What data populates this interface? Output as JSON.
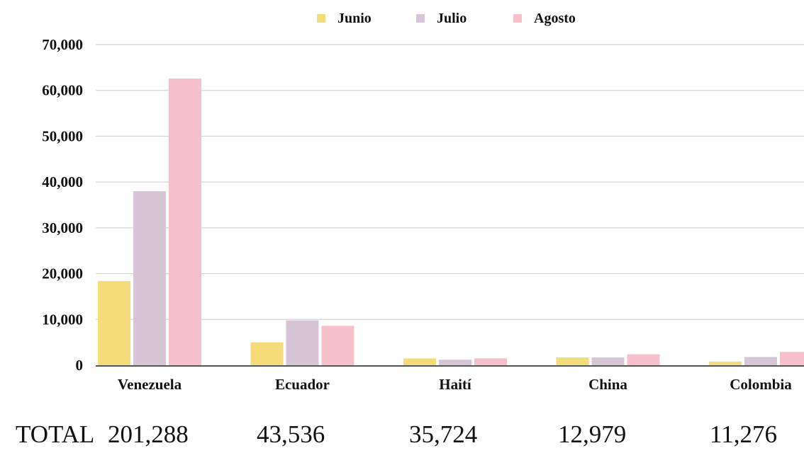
{
  "chart_data": {
    "type": "bar",
    "categories": [
      "Venezuela",
      "Ecuador",
      "Haiti",
      "China",
      "Colombia"
    ],
    "category_labels": [
      "Venezuela",
      "Ecuador",
      "Haití",
      "China",
      "Colombia"
    ],
    "series": [
      {
        "name": "Junio",
        "color": "#f3dc79",
        "values": [
          18400,
          5000,
          1500,
          1700,
          800
        ]
      },
      {
        "name": "Julio",
        "color": "#d5c5d6",
        "values": [
          38000,
          9800,
          1200,
          1700,
          1800
        ]
      },
      {
        "name": "Agosto",
        "color": "#f5c0c9",
        "values": [
          62600,
          8600,
          1500,
          2400,
          2900
        ]
      }
    ],
    "ylim": [
      0,
      70000
    ],
    "yticks": [
      "0",
      "10,000",
      "20,000",
      "30,000",
      "40,000",
      "50,000",
      "60,000",
      "70,000"
    ],
    "grid": true,
    "legend_position": "top-center",
    "title": "",
    "xlabel": "",
    "ylabel": ""
  },
  "totals": {
    "label": "TOTAL",
    "values": [
      "201,288",
      "43,536",
      "35,724",
      "12,979",
      "11,276"
    ]
  }
}
